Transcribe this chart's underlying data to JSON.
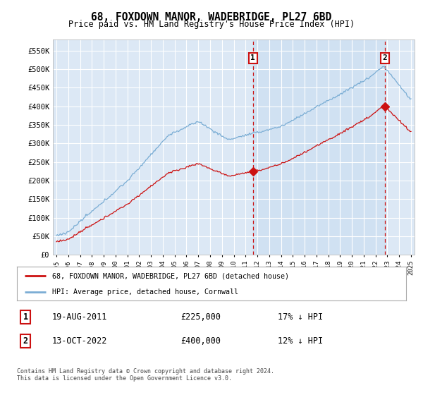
{
  "title": "68, FOXDOWN MANOR, WADEBRIDGE, PL27 6BD",
  "subtitle": "Price paid vs. HM Land Registry's House Price Index (HPI)",
  "bg_color": "#dce8f5",
  "grid_color": "#c8d8e8",
  "hpi_color": "#7aadd4",
  "price_color": "#cc1111",
  "dashed_color": "#cc1111",
  "shade_color": "#c8ddf0",
  "ylabel_values": [
    0,
    50000,
    100000,
    150000,
    200000,
    250000,
    300000,
    350000,
    400000,
    450000,
    500000,
    550000
  ],
  "ylim": [
    0,
    580000
  ],
  "sale1_date_x": 2011.63,
  "sale1_price": 225000,
  "sale2_date_x": 2022.78,
  "sale2_price": 400000,
  "legend_label1": "68, FOXDOWN MANOR, WADEBRIDGE, PL27 6BD (detached house)",
  "legend_label2": "HPI: Average price, detached house, Cornwall",
  "table_row1_num": "1",
  "table_row1_date": "19-AUG-2011",
  "table_row1_price": "£225,000",
  "table_row1_hpi": "17% ↓ HPI",
  "table_row2_num": "2",
  "table_row2_date": "13-OCT-2022",
  "table_row2_price": "£400,000",
  "table_row2_hpi": "12% ↓ HPI",
  "footer": "Contains HM Land Registry data © Crown copyright and database right 2024.\nThis data is licensed under the Open Government Licence v3.0.",
  "xmin": 1994.7,
  "xmax": 2025.3
}
